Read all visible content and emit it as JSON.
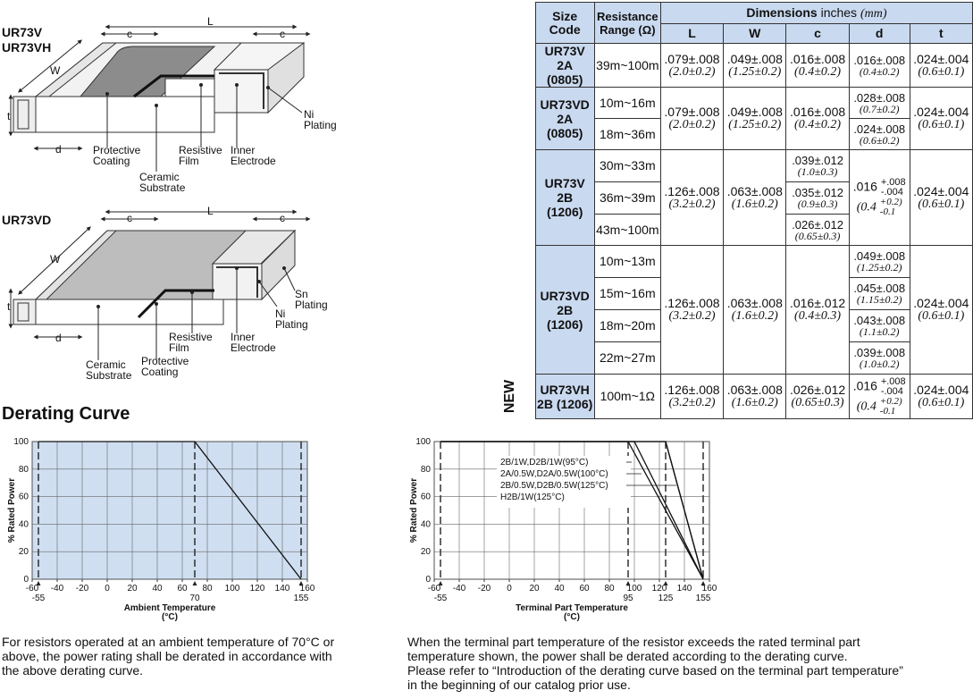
{
  "diagram_top": {
    "names": [
      "UR73V",
      "UR73VH"
    ],
    "labels": {
      "L": "L",
      "c_left": "c",
      "c_right": "c",
      "W": "W",
      "t": "t",
      "d": "d",
      "protective_coating": [
        "Protective",
        "Coating"
      ],
      "ceramic_substrate": [
        "Ceramic",
        "Substrate"
      ],
      "resistive_film": [
        "Resistive",
        "Film"
      ],
      "inner_electrode": [
        "Inner",
        "Electrode"
      ],
      "ni_plating": [
        "Ni",
        "Plating"
      ]
    }
  },
  "diagram_bottom": {
    "name": "UR73VD",
    "labels": {
      "L": "L",
      "c_left": "c",
      "c_right": "c",
      "W": "W",
      "t": "t",
      "d": "d",
      "ceramic_substrate": [
        "Ceramic",
        "Substrate"
      ],
      "protective_coating": [
        "Protective",
        "Coating"
      ],
      "resistive_film": [
        "Resistive",
        "Film"
      ],
      "inner_electrode": [
        "Inner",
        "Electrode"
      ],
      "ni_plating": [
        "Ni",
        "Plating"
      ],
      "sn_plating": [
        "Sn",
        "Plating"
      ]
    }
  },
  "table": {
    "headers": {
      "size_code": [
        "Size",
        "Code"
      ],
      "resistance": [
        "Resistance",
        "Range (Ω)"
      ],
      "dimensions": "Dimensions",
      "dimensions_unit": " inches ",
      "dimensions_mm": "(mm)",
      "L": "L",
      "W": "W",
      "c": "c",
      "d": "d",
      "t": "t"
    },
    "groups": [
      {
        "code": [
          "UR73V 2A",
          "(0805)"
        ],
        "ranges": [
          "39m~100m"
        ],
        "L": [
          ".079±.008",
          "(2.0±0.2)"
        ],
        "W": [
          ".049±.008",
          "(1.25±0.2)"
        ],
        "c": [
          [
            ".016±.008",
            "(0.4±0.2)"
          ]
        ],
        "d": [
          [
            ".016±.008",
            "(0.4±0.2)"
          ]
        ],
        "t": [
          ".024±.004",
          "(0.6±0.1)"
        ]
      },
      {
        "code": [
          "UR73VD",
          "2A",
          "(0805)"
        ],
        "ranges": [
          "10m~16m",
          "18m~36m"
        ],
        "L": [
          ".079±.008",
          "(2.0±0.2)"
        ],
        "W": [
          ".049±.008",
          "(1.25±0.2)"
        ],
        "c": [
          [
            ".016±.008",
            "(0.4±0.2)"
          ]
        ],
        "d": [
          [
            ".028±.008",
            "(0.7±0.2)"
          ],
          [
            ".024±.008",
            "(0.6±0.2)"
          ]
        ],
        "t": [
          ".024±.004",
          "(0.6±0.1)"
        ]
      },
      {
        "code": [
          "UR73V",
          "2B",
          "(1206)"
        ],
        "ranges": [
          "30m~33m",
          "36m~39m",
          "43m~100m"
        ],
        "L": [
          ".126±.008",
          "(3.2±0.2)"
        ],
        "W": [
          ".063±.008",
          "(1.6±0.2)"
        ],
        "c": [
          [
            ".039±.012",
            "(1.0±0.3)"
          ],
          [
            ".035±.012",
            "(0.9±0.3)"
          ],
          [
            ".026±.012",
            "(0.65±0.3)"
          ]
        ],
        "d": {
          "main": ".016",
          "tol_plus": "+.008",
          "tol_minus": "-.004",
          "mm_main": "(0.4",
          "mm_plus": "+0.2)",
          "mm_minus": "-0.1"
        },
        "t": [
          ".024±.004",
          "(0.6±0.1)"
        ]
      },
      {
        "code": [
          "UR73VD",
          "2B",
          "(1206)"
        ],
        "ranges": [
          "10m~13m",
          "15m~16m",
          "18m~20m",
          "22m~27m"
        ],
        "L": [
          ".126±.008",
          "(3.2±0.2)"
        ],
        "W": [
          ".063±.008",
          "(1.6±0.2)"
        ],
        "c": [
          [
            ".016±.012",
            "(0.4±0.3)"
          ]
        ],
        "d": [
          [
            ".049±.008",
            "(1.25±0.2)"
          ],
          [
            ".045±.008",
            "(1.15±0.2)"
          ],
          [
            ".043±.008",
            "(1.1±0.2)"
          ],
          [
            ".039±.008",
            "(1.0±0.2)"
          ]
        ],
        "t": [
          ".024±.004",
          "(0.6±0.1)"
        ]
      },
      {
        "new_badge": "NEW",
        "code": [
          "UR73VH",
          "2B (1206)"
        ],
        "ranges": [
          "100m~1Ω"
        ],
        "L": [
          ".126±.008",
          "(3.2±0.2)"
        ],
        "W": [
          ".063±.008",
          "(1.6±0.2)"
        ],
        "c": [
          [
            ".026±.012",
            "(0.65±0.3)"
          ]
        ],
        "d": {
          "main": ".016",
          "tol_plus": "+.008",
          "tol_minus": "-.004",
          "mm_main": "(0.4",
          "mm_plus": "+0.2)",
          "mm_minus": "-0.1"
        },
        "t": [
          ".024±.004",
          "(0.6±0.1)"
        ]
      }
    ]
  },
  "derating_title": "Derating Curve",
  "chart_data": [
    {
      "type": "line",
      "xlabel": [
        "Ambient Temperature",
        "(°C)"
      ],
      "ylabel": "% Rated Power",
      "xlim": [
        -60,
        160
      ],
      "ylim": [
        0,
        100
      ],
      "x_ticks": [
        "-60",
        "-40",
        "-20",
        "0",
        "20",
        "40",
        "60",
        "80",
        "100",
        "120",
        "140",
        "160"
      ],
      "y_ticks": [
        "0",
        "20",
        "40",
        "60",
        "80",
        "100"
      ],
      "markers": [
        -55,
        70,
        155
      ],
      "marker_labels": [
        "-55",
        "70",
        "155"
      ],
      "series": [
        {
          "x": [
            -55,
            70,
            155
          ],
          "y": [
            100,
            100,
            0
          ]
        }
      ],
      "grid": true,
      "background": "#cfdff1"
    },
    {
      "type": "line",
      "xlabel": [
        "Terminal Part Temperature",
        "(°C)"
      ],
      "ylabel": "% Rated Power",
      "xlim": [
        -60,
        160
      ],
      "ylim": [
        0,
        100
      ],
      "x_ticks": [
        "-60",
        "-40",
        "-20",
        "0",
        "20",
        "40",
        "60",
        "80",
        "100",
        "120",
        "140",
        "160"
      ],
      "y_ticks": [
        "0",
        "20",
        "40",
        "60",
        "80",
        "100"
      ],
      "markers": [
        -55,
        95,
        125,
        155
      ],
      "marker_labels": [
        "-55",
        "95",
        "125",
        "155"
      ],
      "series": [
        {
          "name": "2B/1W,D2B/1W(95°C)",
          "x": [
            -55,
            95,
            155
          ],
          "y": [
            100,
            100,
            0
          ]
        },
        {
          "name": "2A/0.5W,D2A/0.5W(100°C)",
          "x": [
            -55,
            100,
            155
          ],
          "y": [
            100,
            100,
            0
          ]
        },
        {
          "name": "2B/0.5W,D2B/0.5W(125°C)",
          "x": [
            -55,
            125,
            155
          ],
          "y": [
            100,
            100,
            0
          ]
        },
        {
          "name": "H2B/1W(125°C)",
          "x": [
            -55,
            125,
            155
          ],
          "y": [
            100,
            100,
            0
          ]
        }
      ],
      "grid": true,
      "background": "#ffffff"
    }
  ],
  "paragraphs": {
    "left": [
      "For resistors operated at an ambient temperature of 70°C or",
      "above, the power rating shall be derated in accordance with",
      "the above derating curve."
    ],
    "right": [
      "When the terminal part temperature of the resistor exceeds the rated terminal part",
      "temperature shown, the power shall be derated according to the derating curve.",
      "Please refer to “Introduction of the derating curve based on the terminal part temperature”",
      "in the beginning of our catalog prior use."
    ]
  }
}
